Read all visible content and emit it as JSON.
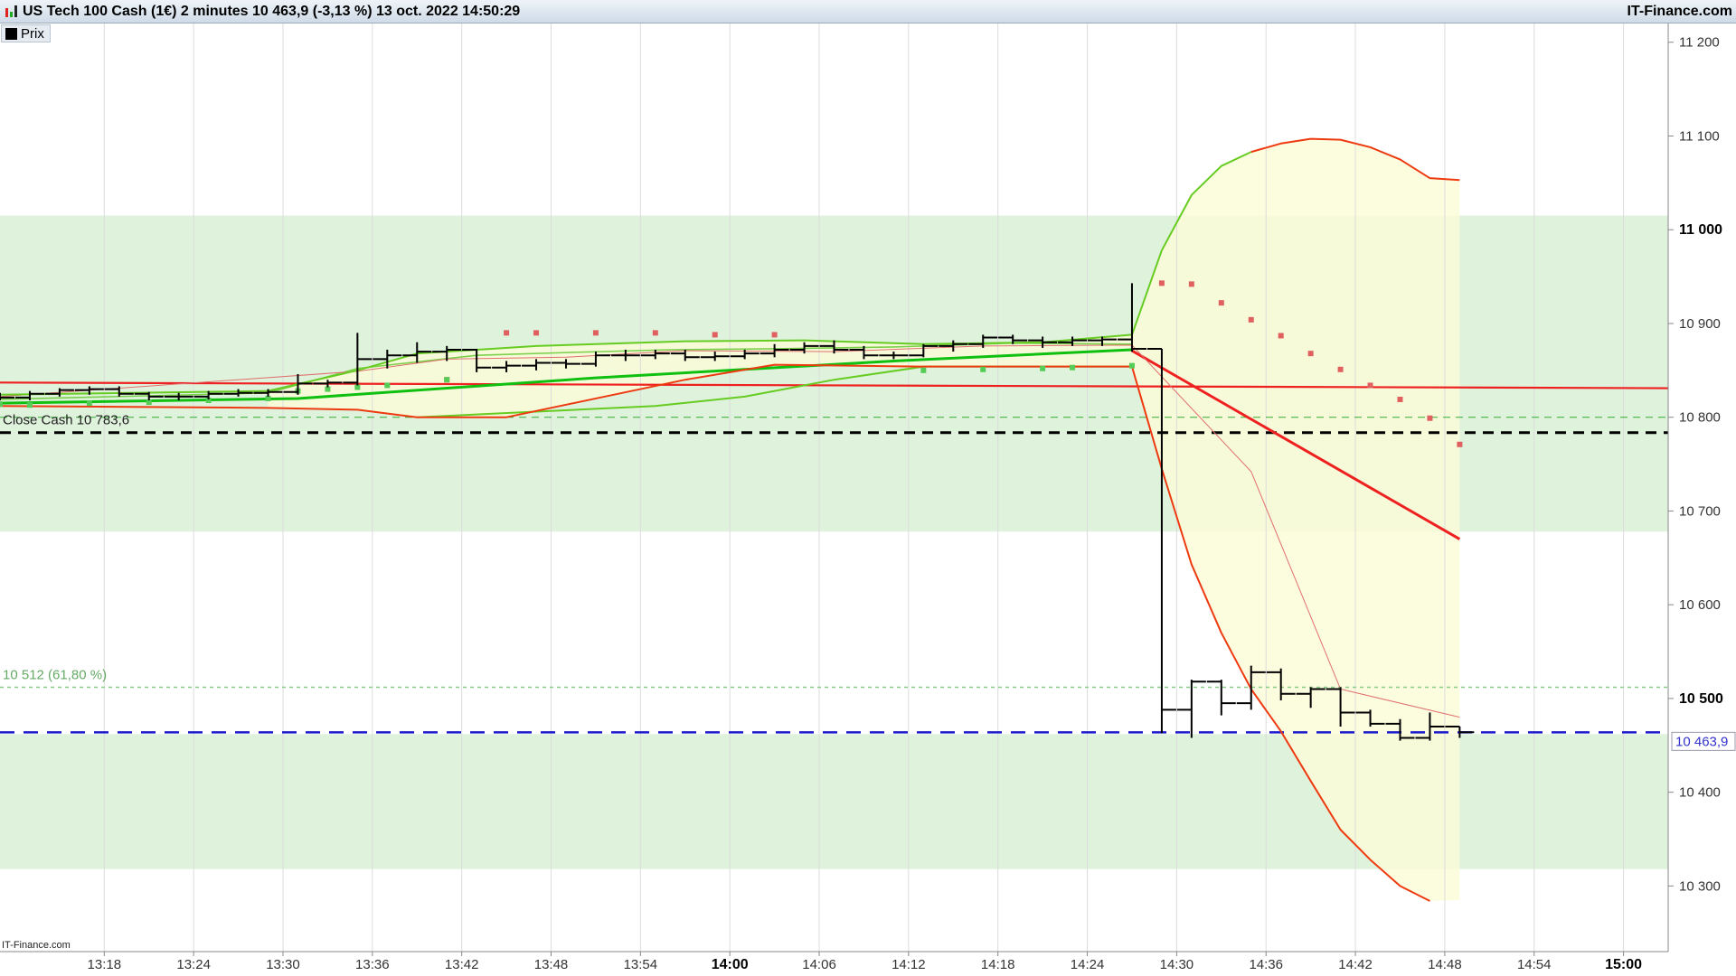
{
  "header": {
    "title": "US Tech 100 Cash (1€) 2 minutes 10 463,9 (-3,13 %) 13 oct. 2022 14:50:29",
    "brand": "IT-Finance.com",
    "logo_icon": "candlestick-logo-icon"
  },
  "legend": {
    "label": "Prix",
    "swatch_color": "#000000"
  },
  "watermark": "IT-Finance.com",
  "chart_data": {
    "type": "bar",
    "title": "US Tech 100 Cash (1€) 2 minutes",
    "ylim": [
      10230,
      11220
    ],
    "y_ticks": [
      {
        "value": 10300,
        "label": "10 300",
        "bold": false
      },
      {
        "value": 10400,
        "label": "10 400",
        "bold": false
      },
      {
        "value": 10500,
        "label": "10 500",
        "bold": true
      },
      {
        "value": 10600,
        "label": "10 600",
        "bold": false
      },
      {
        "value": 10700,
        "label": "10 700",
        "bold": false
      },
      {
        "value": 10800,
        "label": "10 800",
        "bold": false
      },
      {
        "value": 10900,
        "label": "10 900",
        "bold": false
      },
      {
        "value": 11000,
        "label": "11 000",
        "bold": true
      },
      {
        "value": 11100,
        "label": "11 100",
        "bold": false
      },
      {
        "value": 11200,
        "label": "11 200",
        "bold": false
      }
    ],
    "x_ticks": [
      {
        "t": 17,
        "label": "13:18",
        "bold": false
      },
      {
        "t": 23,
        "label": "13:24",
        "bold": false
      },
      {
        "t": 29,
        "label": "13:30",
        "bold": false
      },
      {
        "t": 35,
        "label": "13:36",
        "bold": false
      },
      {
        "t": 41,
        "label": "13:42",
        "bold": false
      },
      {
        "t": 47,
        "label": "13:48",
        "bold": false
      },
      {
        "t": 53,
        "label": "13:54",
        "bold": false
      },
      {
        "t": 59,
        "label": "14:00",
        "bold": true
      },
      {
        "t": 65,
        "label": "14:06",
        "bold": false
      },
      {
        "t": 71,
        "label": "14:12",
        "bold": false
      },
      {
        "t": 77,
        "label": "14:18",
        "bold": false
      },
      {
        "t": 83,
        "label": "14:24",
        "bold": false
      },
      {
        "t": 89,
        "label": "14:30",
        "bold": false
      },
      {
        "t": 95,
        "label": "14:36",
        "bold": false
      },
      {
        "t": 101,
        "label": "14:42",
        "bold": false
      },
      {
        "t": 107,
        "label": "14:48",
        "bold": false
      },
      {
        "t": 113,
        "label": "14:54",
        "bold": false
      },
      {
        "t": 119,
        "label": "15:00",
        "bold": true
      }
    ],
    "x_range": [
      10,
      122
    ],
    "zones": [
      {
        "from": 10678,
        "to": 11015,
        "color": "#dff2dc"
      },
      {
        "from": 10318,
        "to": 10462,
        "color": "#dff2dc"
      }
    ],
    "bars": [
      {
        "t": 10,
        "o": 10823,
        "h": 10826,
        "l": 10818,
        "c": 10821
      },
      {
        "t": 12,
        "o": 10821,
        "h": 10828,
        "l": 10818,
        "c": 10825
      },
      {
        "t": 14,
        "o": 10825,
        "h": 10831,
        "l": 10822,
        "c": 10829
      },
      {
        "t": 16,
        "o": 10829,
        "h": 10833,
        "l": 10824,
        "c": 10830
      },
      {
        "t": 18,
        "o": 10830,
        "h": 10833,
        "l": 10822,
        "c": 10825
      },
      {
        "t": 20,
        "o": 10825,
        "h": 10827,
        "l": 10818,
        "c": 10822
      },
      {
        "t": 22,
        "o": 10822,
        "h": 10826,
        "l": 10818,
        "c": 10822
      },
      {
        "t": 24,
        "o": 10822,
        "h": 10828,
        "l": 10819,
        "c": 10825
      },
      {
        "t": 26,
        "o": 10825,
        "h": 10830,
        "l": 10822,
        "c": 10826
      },
      {
        "t": 28,
        "o": 10826,
        "h": 10830,
        "l": 10822,
        "c": 10827
      },
      {
        "t": 30,
        "o": 10827,
        "h": 10846,
        "l": 10824,
        "c": 10836
      },
      {
        "t": 32,
        "o": 10836,
        "h": 10840,
        "l": 10832,
        "c": 10837
      },
      {
        "t": 34,
        "o": 10837,
        "h": 10890,
        "l": 10834,
        "c": 10862
      },
      {
        "t": 36,
        "o": 10862,
        "h": 10872,
        "l": 10852,
        "c": 10866
      },
      {
        "t": 38,
        "o": 10866,
        "h": 10880,
        "l": 10858,
        "c": 10870
      },
      {
        "t": 40,
        "o": 10870,
        "h": 10876,
        "l": 10860,
        "c": 10872
      },
      {
        "t": 42,
        "o": 10872,
        "h": 10873,
        "l": 10848,
        "c": 10853
      },
      {
        "t": 44,
        "o": 10853,
        "h": 10860,
        "l": 10848,
        "c": 10855
      },
      {
        "t": 46,
        "o": 10855,
        "h": 10862,
        "l": 10850,
        "c": 10858
      },
      {
        "t": 48,
        "o": 10858,
        "h": 10862,
        "l": 10852,
        "c": 10857
      },
      {
        "t": 50,
        "o": 10857,
        "h": 10870,
        "l": 10854,
        "c": 10866
      },
      {
        "t": 52,
        "o": 10866,
        "h": 10872,
        "l": 10860,
        "c": 10866
      },
      {
        "t": 54,
        "o": 10866,
        "h": 10872,
        "l": 10862,
        "c": 10868
      },
      {
        "t": 56,
        "o": 10868,
        "h": 10872,
        "l": 10860,
        "c": 10864
      },
      {
        "t": 58,
        "o": 10864,
        "h": 10870,
        "l": 10860,
        "c": 10865
      },
      {
        "t": 60,
        "o": 10865,
        "h": 10872,
        "l": 10862,
        "c": 10868
      },
      {
        "t": 62,
        "o": 10868,
        "h": 10878,
        "l": 10864,
        "c": 10872
      },
      {
        "t": 64,
        "o": 10872,
        "h": 10880,
        "l": 10868,
        "c": 10876
      },
      {
        "t": 66,
        "o": 10876,
        "h": 10882,
        "l": 10868,
        "c": 10872
      },
      {
        "t": 68,
        "o": 10872,
        "h": 10876,
        "l": 10862,
        "c": 10866
      },
      {
        "t": 70,
        "o": 10866,
        "h": 10870,
        "l": 10862,
        "c": 10866
      },
      {
        "t": 72,
        "o": 10866,
        "h": 10878,
        "l": 10864,
        "c": 10876
      },
      {
        "t": 74,
        "o": 10876,
        "h": 10882,
        "l": 10870,
        "c": 10878
      },
      {
        "t": 76,
        "o": 10878,
        "h": 10888,
        "l": 10874,
        "c": 10885
      },
      {
        "t": 78,
        "o": 10885,
        "h": 10888,
        "l": 10878,
        "c": 10882
      },
      {
        "t": 80,
        "o": 10882,
        "h": 10886,
        "l": 10874,
        "c": 10880
      },
      {
        "t": 82,
        "o": 10880,
        "h": 10886,
        "l": 10876,
        "c": 10882
      },
      {
        "t": 84,
        "o": 10882,
        "h": 10886,
        "l": 10876,
        "c": 10883
      },
      {
        "t": 86,
        "o": 10883,
        "h": 10943,
        "l": 10870,
        "c": 10873
      },
      {
        "t": 88,
        "o": 10873,
        "h": 10873,
        "l": 10463,
        "c": 10488
      },
      {
        "t": 90,
        "o": 10488,
        "h": 10520,
        "l": 10458,
        "c": 10518
      },
      {
        "t": 92,
        "o": 10518,
        "h": 10520,
        "l": 10482,
        "c": 10495
      },
      {
        "t": 94,
        "o": 10495,
        "h": 10535,
        "l": 10488,
        "c": 10528
      },
      {
        "t": 96,
        "o": 10528,
        "h": 10532,
        "l": 10498,
        "c": 10505
      },
      {
        "t": 98,
        "o": 10505,
        "h": 10512,
        "l": 10490,
        "c": 10510
      },
      {
        "t": 100,
        "o": 10510,
        "h": 10512,
        "l": 10470,
        "c": 10485
      },
      {
        "t": 102,
        "o": 10485,
        "h": 10488,
        "l": 10470,
        "c": 10473
      },
      {
        "t": 104,
        "o": 10473,
        "h": 10478,
        "l": 10455,
        "c": 10458
      },
      {
        "t": 106,
        "o": 10458,
        "h": 10485,
        "l": 10455,
        "c": 10470
      },
      {
        "t": 108,
        "o": 10470,
        "h": 10470,
        "l": 10458,
        "c": 10464
      }
    ],
    "lines": [
      {
        "name": "red-horizontal",
        "color": "#ee2020",
        "width": 2.2,
        "points": [
          [
            10,
            10837
          ],
          [
            122,
            10831
          ]
        ]
      },
      {
        "name": "red-projection",
        "color": "#ee2020",
        "width": 3,
        "points": [
          [
            86,
            10871
          ],
          [
            108,
            10670
          ]
        ]
      },
      {
        "name": "green-ma-thick",
        "color": "#10c010",
        "width": 3,
        "points": [
          [
            10,
            10815
          ],
          [
            30,
            10820
          ],
          [
            50,
            10842
          ],
          [
            70,
            10860
          ],
          [
            86,
            10872
          ]
        ]
      },
      {
        "name": "green-ma-thin",
        "color": "#7ad04a",
        "width": 1.6,
        "points": [
          [
            10,
            10819
          ],
          [
            28,
            10826
          ],
          [
            34,
            10852
          ],
          [
            42,
            10866
          ],
          [
            48,
            10869
          ],
          [
            55,
            10872
          ],
          [
            62,
            10873
          ],
          [
            70,
            10875
          ],
          [
            78,
            10879
          ],
          [
            86,
            10878
          ]
        ]
      },
      {
        "name": "thin-red-mid",
        "color": "#e07070",
        "width": 1,
        "points": [
          [
            10,
            10822
          ],
          [
            34,
            10849
          ],
          [
            40,
            10862
          ],
          [
            48,
            10864
          ],
          [
            56,
            10871
          ],
          [
            66,
            10870
          ],
          [
            76,
            10876
          ],
          [
            86,
            10877
          ],
          [
            94,
            10742
          ],
          [
            100,
            10510
          ],
          [
            108,
            10480
          ]
        ]
      },
      {
        "name": "upper-band",
        "color": "#66cc22",
        "width": 2,
        "points": [
          [
            10,
            10824
          ],
          [
            28,
            10828
          ],
          [
            34,
            10850
          ],
          [
            38,
            10868
          ],
          [
            46,
            10876
          ],
          [
            56,
            10881
          ],
          [
            64,
            10882
          ],
          [
            72,
            10878
          ],
          [
            80,
            10880
          ],
          [
            86,
            10888
          ],
          [
            88,
            10978
          ],
          [
            90,
            11037
          ],
          [
            92,
            11068
          ],
          [
            94,
            11083
          ]
        ]
      },
      {
        "name": "upper-band-red",
        "color": "#ee3a10",
        "width": 2,
        "points": [
          [
            94,
            11083
          ],
          [
            96,
            11092
          ],
          [
            98,
            11097
          ],
          [
            100,
            11096
          ],
          [
            102,
            11088
          ],
          [
            104,
            11075
          ],
          [
            106,
            11055
          ],
          [
            108,
            11053
          ]
        ]
      },
      {
        "name": "lower-band-green",
        "color": "#66cc22",
        "width": 2,
        "points": [
          [
            38,
            10800
          ],
          [
            46,
            10806
          ],
          [
            54,
            10812
          ],
          [
            60,
            10822
          ],
          [
            66,
            10840
          ],
          [
            72,
            10854
          ],
          [
            86,
            10854
          ]
        ]
      },
      {
        "name": "lower-band-red",
        "color": "#ee3a10",
        "width": 2,
        "points": [
          [
            10,
            10812
          ],
          [
            28,
            10810
          ],
          [
            34,
            10808
          ],
          [
            38,
            10800
          ],
          [
            44,
            10800
          ],
          [
            50,
            10820
          ],
          [
            56,
            10840
          ],
          [
            62,
            10856
          ],
          [
            72,
            10854
          ],
          [
            86,
            10854
          ],
          [
            88,
            10745
          ],
          [
            90,
            10643
          ],
          [
            92,
            10570
          ],
          [
            94,
            10510
          ],
          [
            96,
            10465
          ],
          [
            98,
            10412
          ],
          [
            100,
            10360
          ],
          [
            102,
            10328
          ],
          [
            104,
            10300
          ],
          [
            106,
            10284
          ]
        ]
      }
    ],
    "cone_fill": {
      "color": "#fbfbd8",
      "upper": [
        [
          86,
          10888
        ],
        [
          88,
          10978
        ],
        [
          90,
          11037
        ],
        [
          92,
          11068
        ],
        [
          94,
          11083
        ],
        [
          96,
          11092
        ],
        [
          98,
          11097
        ],
        [
          100,
          11096
        ],
        [
          102,
          11088
        ],
        [
          104,
          11075
        ],
        [
          106,
          11055
        ],
        [
          108,
          11053
        ]
      ],
      "lower": [
        [
          86,
          10854
        ],
        [
          88,
          10745
        ],
        [
          90,
          10643
        ],
        [
          92,
          10570
        ],
        [
          94,
          10510
        ],
        [
          96,
          10465
        ],
        [
          98,
          10412
        ],
        [
          100,
          10360
        ],
        [
          102,
          10328
        ],
        [
          104,
          10300
        ],
        [
          106,
          10284
        ],
        [
          108,
          10285
        ]
      ]
    },
    "early_fill": {
      "color": "#fbfbd8",
      "upper": [
        [
          28,
          10828
        ],
        [
          34,
          10850
        ],
        [
          38,
          10868
        ],
        [
          46,
          10876
        ],
        [
          56,
          10881
        ],
        [
          64,
          10882
        ],
        [
          72,
          10878
        ],
        [
          80,
          10880
        ],
        [
          86,
          10888
        ]
      ],
      "lower": [
        [
          28,
          10810
        ],
        [
          34,
          10808
        ],
        [
          38,
          10800
        ],
        [
          44,
          10800
        ],
        [
          50,
          10820
        ],
        [
          56,
          10840
        ],
        [
          62,
          10856
        ],
        [
          72,
          10854
        ],
        [
          86,
          10854
        ]
      ]
    },
    "dots_red": [
      [
        88,
        10943
      ],
      [
        90,
        10942
      ],
      [
        92,
        10922
      ],
      [
        94,
        10904
      ],
      [
        96,
        10887
      ],
      [
        98,
        10868
      ],
      [
        100,
        10851
      ],
      [
        102,
        10834
      ],
      [
        104,
        10819
      ],
      [
        106,
        10799
      ],
      [
        108,
        10771
      ],
      [
        40,
        10840
      ],
      [
        44,
        10890
      ],
      [
        46,
        10890
      ],
      [
        50,
        10890
      ],
      [
        54,
        10890
      ],
      [
        58,
        10888
      ],
      [
        62,
        10888
      ]
    ],
    "dots_green": [
      [
        10,
        10814
      ],
      [
        12,
        10813
      ],
      [
        16,
        10815
      ],
      [
        20,
        10816
      ],
      [
        24,
        10818
      ],
      [
        28,
        10820
      ],
      [
        30,
        10828
      ],
      [
        32,
        10830
      ],
      [
        34,
        10832
      ],
      [
        36,
        10834
      ],
      [
        40,
        10840
      ],
      [
        72,
        10850
      ],
      [
        76,
        10851
      ],
      [
        80,
        10852
      ],
      [
        82,
        10853
      ],
      [
        86,
        10855
      ]
    ],
    "hlines": [
      {
        "name": "close-cash-line",
        "value": 10783.6,
        "color": "#000000",
        "width": 3,
        "dash": "12,8"
      },
      {
        "name": "fib-level-line",
        "value": 10512,
        "color": "#88cc88",
        "width": 1.5,
        "dash": "4,4"
      },
      {
        "name": "green-dashed-level",
        "value": 10800,
        "color": "#33aa33",
        "width": 1,
        "dash": "8,6"
      },
      {
        "name": "last-price-line",
        "value": 10463.9,
        "color": "#1a1acc",
        "width": 2.5,
        "dash": "16,10"
      }
    ],
    "annotations": [
      {
        "label": "Close Cash 10 783,6",
        "value": 10783.6,
        "color": "#222222"
      },
      {
        "label": "10 512 (61,80 %)",
        "value": 10512,
        "color": "#66aa66"
      }
    ],
    "last_price": {
      "label": "10 463,9",
      "value": 10463.9,
      "color": "#3333cc"
    }
  }
}
